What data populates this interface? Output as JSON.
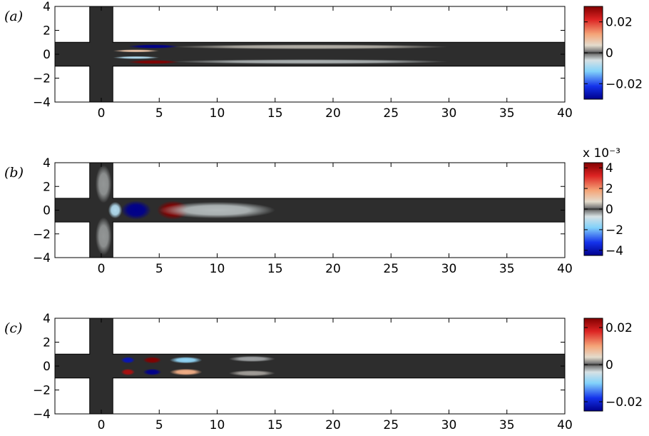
{
  "chart_data": [
    {
      "type": "heatmap",
      "panel_label": "(a)",
      "xlim": [
        -4,
        40
      ],
      "ylim": [
        -4,
        4
      ],
      "xticks": [
        0,
        5,
        10,
        15,
        20,
        25,
        30,
        35,
        40
      ],
      "yticks": [
        4,
        2,
        0,
        -2,
        -4
      ],
      "xtick_labels": [
        "0",
        "5",
        "10",
        "15",
        "20",
        "25",
        "30",
        "35",
        "40"
      ],
      "ytick_labels": [
        "4",
        "2",
        "0",
        "−2",
        "−4"
      ],
      "colorbar": {
        "min": -0.03,
        "max": 0.03,
        "ticks": [
          0.02,
          0,
          -0.02
        ],
        "tick_labels": [
          "0.02",
          "0",
          "−0.02"
        ],
        "exponent_label": ""
      },
      "blobs": [
        {
          "x": 4.5,
          "y": 0.65,
          "sx": 2.2,
          "sy": 0.17,
          "v": -0.03
        },
        {
          "x": 4.5,
          "y": -0.65,
          "sx": 2.2,
          "sy": 0.17,
          "v": 0.03
        },
        {
          "x": 3.0,
          "y": 0.28,
          "sx": 2.0,
          "sy": 0.12,
          "v": 0.008
        },
        {
          "x": 3.0,
          "y": -0.28,
          "sx": 2.0,
          "sy": 0.12,
          "v": -0.008
        },
        {
          "x": 18.0,
          "y": 0.62,
          "sx": 12.0,
          "sy": 0.2,
          "v": 0.003
        },
        {
          "x": 18.0,
          "y": -0.62,
          "sx": 12.0,
          "sy": 0.2,
          "v": -0.003
        }
      ]
    },
    {
      "type": "heatmap",
      "panel_label": "(b)",
      "xlim": [
        -4,
        40
      ],
      "ylim": [
        -4,
        4
      ],
      "xticks": [
        0,
        5,
        10,
        15,
        20,
        25,
        30,
        35,
        40
      ],
      "yticks": [
        4,
        2,
        0,
        -2,
        -4
      ],
      "xtick_labels": [
        "0",
        "5",
        "10",
        "15",
        "20",
        "25",
        "30",
        "35",
        "40"
      ],
      "ytick_labels": [
        "4",
        "2",
        "0",
        "−2",
        "−4"
      ],
      "colorbar": {
        "min": -4.5,
        "max": 4.5,
        "ticks": [
          4,
          2,
          0,
          -2,
          -4
        ],
        "tick_labels": [
          "4",
          "2",
          "0",
          "−2",
          "−4"
        ],
        "exponent_label": "x 10⁻³"
      },
      "blobs": [
        {
          "x": 3.0,
          "y": 0,
          "sx": 1.3,
          "sy": 0.8,
          "v": -4.5
        },
        {
          "x": 6.2,
          "y": 0,
          "sx": 1.4,
          "sy": 0.8,
          "v": 4.5
        },
        {
          "x": 1.2,
          "y": 0,
          "sx": 0.6,
          "sy": 0.7,
          "v": -1.2
        },
        {
          "x": 10.0,
          "y": 0,
          "sx": 5.0,
          "sy": 0.7,
          "v": -0.5
        },
        {
          "x": 0.2,
          "y": 2.2,
          "sx": 0.7,
          "sy": 1.6,
          "v": -0.3
        },
        {
          "x": 0.2,
          "y": -2.2,
          "sx": 0.7,
          "sy": 1.6,
          "v": -0.3
        }
      ]
    },
    {
      "type": "heatmap",
      "panel_label": "(c)",
      "xlim": [
        -4,
        40
      ],
      "ylim": [
        -4,
        4
      ],
      "xticks": [
        0,
        5,
        10,
        15,
        20,
        25,
        30,
        35,
        40
      ],
      "yticks": [
        4,
        2,
        0,
        -2,
        -4
      ],
      "xtick_labels": [
        "0",
        "5",
        "10",
        "15",
        "20",
        "25",
        "30",
        "35",
        "40"
      ],
      "ytick_labels": [
        "4",
        "2",
        "0",
        "−2",
        "−4"
      ],
      "colorbar": {
        "min": -0.025,
        "max": 0.025,
        "ticks": [
          0.02,
          0,
          -0.02
        ],
        "tick_labels": [
          "0.02",
          "0",
          "−0.02"
        ],
        "exponent_label": ""
      },
      "blobs": [
        {
          "x": 2.3,
          "y": 0.5,
          "sx": 0.6,
          "sy": 0.28,
          "v": -0.022
        },
        {
          "x": 4.4,
          "y": 0.5,
          "sx": 0.8,
          "sy": 0.28,
          "v": 0.025
        },
        {
          "x": 7.3,
          "y": 0.5,
          "sx": 1.4,
          "sy": 0.28,
          "v": -0.009
        },
        {
          "x": 2.3,
          "y": -0.5,
          "sx": 0.6,
          "sy": 0.28,
          "v": 0.022
        },
        {
          "x": 4.4,
          "y": -0.5,
          "sx": 0.8,
          "sy": 0.28,
          "v": -0.025
        },
        {
          "x": 7.3,
          "y": -0.5,
          "sx": 1.4,
          "sy": 0.28,
          "v": 0.009
        },
        {
          "x": 13.0,
          "y": 0.6,
          "sx": 2.0,
          "sy": 0.25,
          "v": -0.002
        },
        {
          "x": 13.0,
          "y": -0.6,
          "sx": 2.0,
          "sy": 0.25,
          "v": 0.002
        }
      ]
    }
  ],
  "colors": {
    "zero_band": "#2d2d2d",
    "background": "#ffffff",
    "domain_outline": "#000000"
  }
}
